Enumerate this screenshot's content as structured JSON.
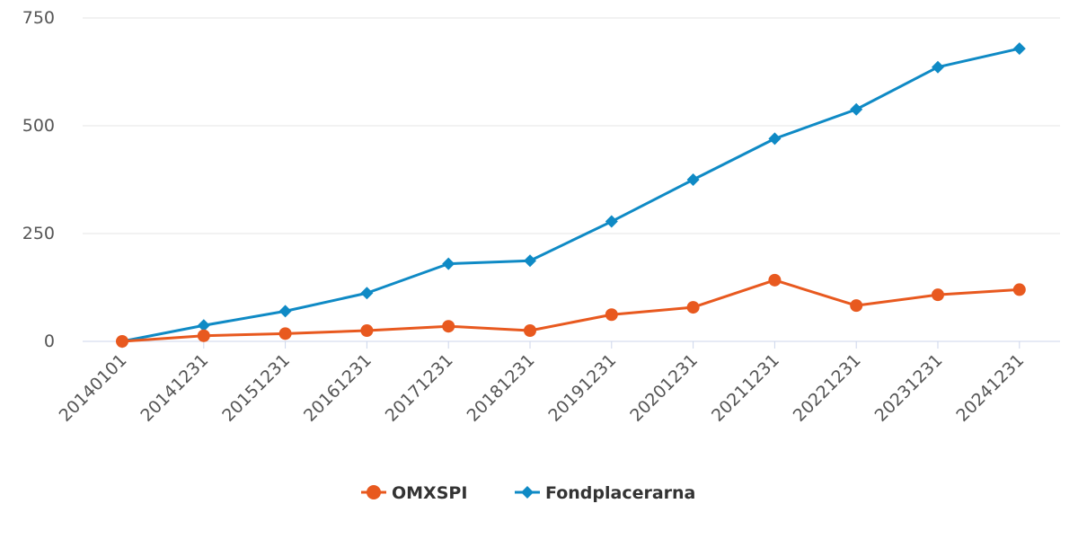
{
  "chart_data": {
    "type": "line",
    "title": "",
    "xlabel": "",
    "ylabel": "",
    "categories": [
      "20140101",
      "20141231",
      "20151231",
      "20161231",
      "20171231",
      "20181231",
      "20191231",
      "20201231",
      "20211231",
      "20221231",
      "20231231",
      "20241231"
    ],
    "yticks": [
      0,
      250,
      500,
      750
    ],
    "ylim": [
      0,
      750
    ],
    "grid": true,
    "legend_position": "bottom-center",
    "series": [
      {
        "name": "OMXSPI",
        "color": "#e8591f",
        "marker": "circle",
        "values": [
          0,
          13,
          18,
          25,
          35,
          25,
          62,
          79,
          142,
          83,
          108,
          120
        ]
      },
      {
        "name": "Fondplacerarna",
        "color": "#0f8ac5",
        "marker": "diamond",
        "values": [
          0,
          37,
          70,
          112,
          180,
          187,
          278,
          375,
          470,
          538,
          636,
          679
        ]
      }
    ]
  }
}
